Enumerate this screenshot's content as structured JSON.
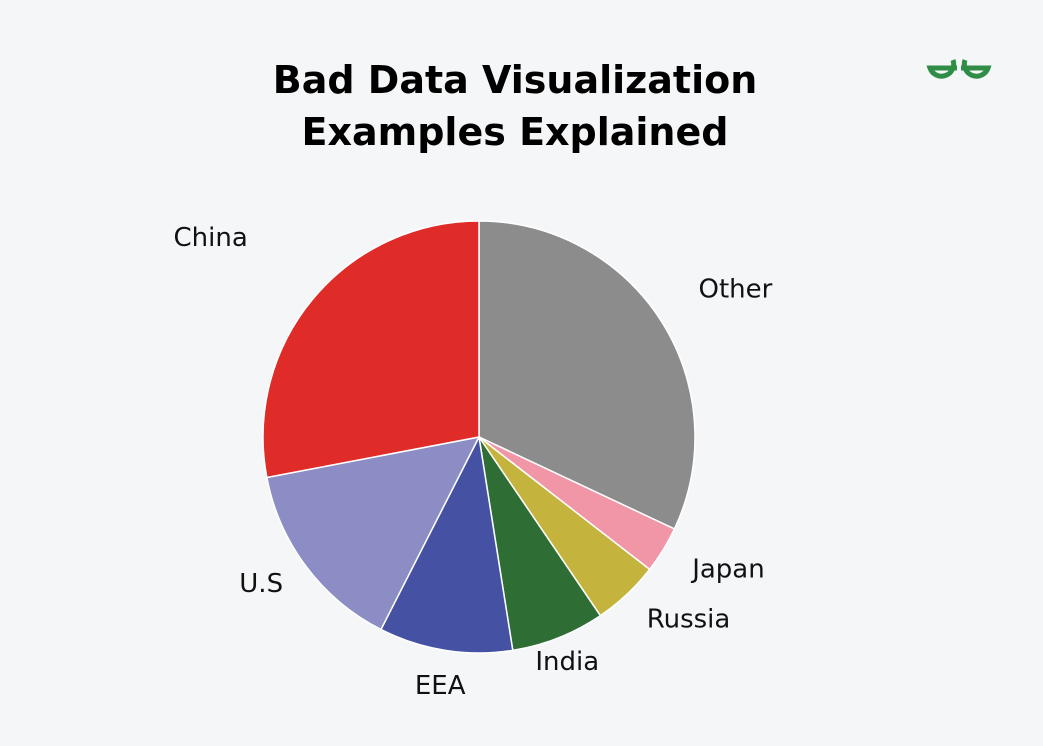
{
  "header": {
    "title_line1": "Bad Data Visualization",
    "title_line2": "Examples Explained",
    "logo_color": "#2f8d46"
  },
  "chart_data": {
    "type": "pie",
    "title": "",
    "start": "12 o'clock",
    "direction": "clockwise",
    "slices": [
      {
        "label": "Other",
        "value": 32.0,
        "color": "#8c8c8c"
      },
      {
        "label": "Japan",
        "value": 3.5,
        "color": "#f096a7"
      },
      {
        "label": "Russia",
        "value": 5.0,
        "color": "#c4b43e"
      },
      {
        "label": "India",
        "value": 7.0,
        "color": "#2e6e35"
      },
      {
        "label": "EEA",
        "value": 10.0,
        "color": "#4552a3"
      },
      {
        "label": "U.S",
        "value": 14.5,
        "color": "#8c8dc4"
      },
      {
        "label": "China",
        "value": 28.0,
        "color": "#e02c28"
      }
    ]
  }
}
